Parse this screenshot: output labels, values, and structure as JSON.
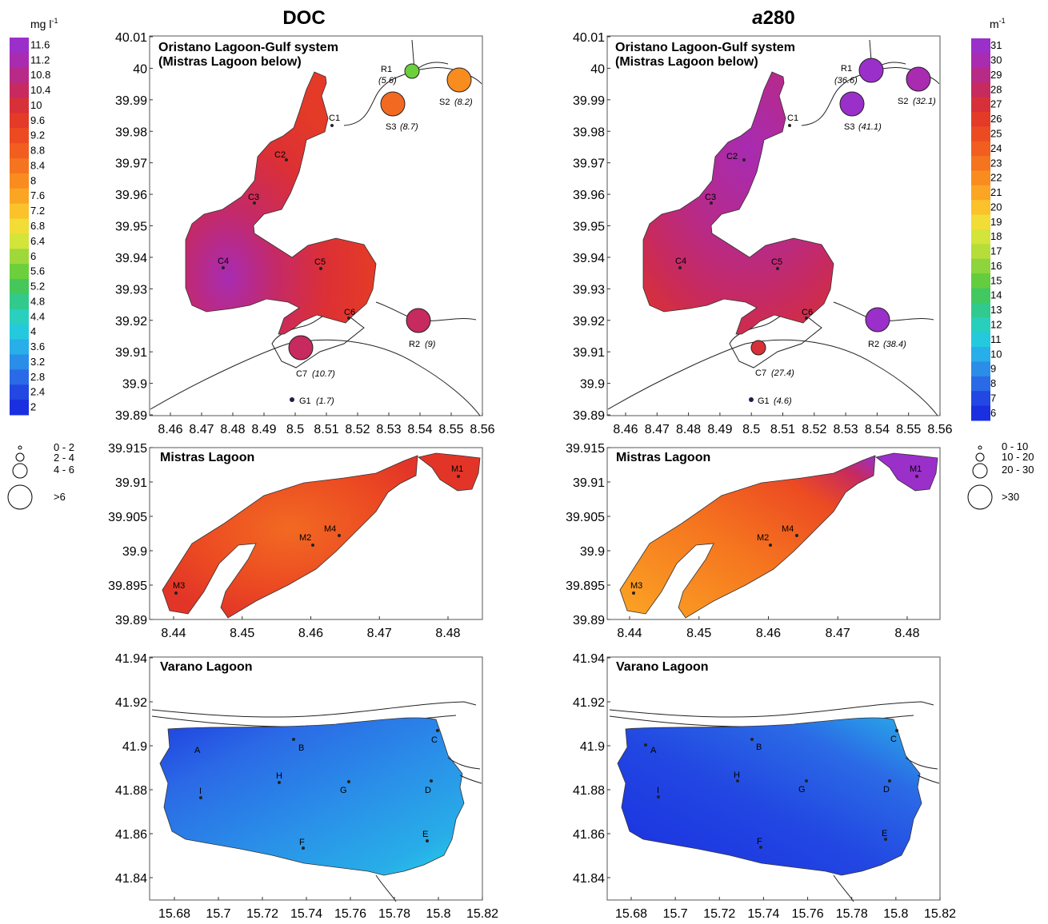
{
  "titles": {
    "doc": "DOC",
    "a280_italic": "a",
    "a280_rest": "280"
  },
  "units": {
    "doc": "mg l-1",
    "doc_base": "mg l",
    "doc_sup": "-1",
    "a280": "m-1",
    "a280_base": "m",
    "a280_sup": "-1"
  },
  "doc_scale": {
    "labels": [
      "11.6",
      "11.2",
      "10.8",
      "10.4",
      "10",
      "9.6",
      "9.2",
      "8.8",
      "8.4",
      "8",
      "7.6",
      "7.2",
      "6.8",
      "6.4",
      "6",
      "5.6",
      "5.2",
      "4.8",
      "4.4",
      "4",
      "3.6",
      "3.2",
      "2.8",
      "2.4",
      "2"
    ],
    "colors": [
      "#9b2fc9",
      "#a82bb0",
      "#b72a88",
      "#c72a5e",
      "#d83038",
      "#e43a28",
      "#ec4b22",
      "#f15e20",
      "#f5741f",
      "#f98c1f",
      "#fba524",
      "#fbc22c",
      "#f2dc36",
      "#d3e43a",
      "#9fd83b",
      "#6ccf3c",
      "#45c75a",
      "#32c98c",
      "#2ad0bd",
      "#25c9de",
      "#28aee8",
      "#2a8de8",
      "#2b6ae6",
      "#2247e2",
      "#1a2fe0"
    ]
  },
  "a280_scale": {
    "labels": [
      "31",
      "30",
      "29",
      "28",
      "27",
      "26",
      "25",
      "24",
      "23",
      "22",
      "21",
      "20",
      "19",
      "18",
      "17",
      "16",
      "15",
      "14",
      "13",
      "12",
      "11",
      "10",
      "9",
      "8",
      "7",
      "6"
    ],
    "colors": [
      "#9b2fc9",
      "#a82bb0",
      "#b72a88",
      "#c72a5e",
      "#d83038",
      "#e43a28",
      "#ec4b22",
      "#f15e20",
      "#f5741f",
      "#f98c1f",
      "#fba524",
      "#fbc22c",
      "#f2dc36",
      "#d3e43a",
      "#b5de3b",
      "#8ed43c",
      "#63cd3f",
      "#42c860",
      "#30ca8f",
      "#28cfbd",
      "#25c9de",
      "#28aee8",
      "#2a8de8",
      "#2b6ae6",
      "#2247e2",
      "#1a2fe0"
    ]
  },
  "doc_size_legend": [
    "0 - 2",
    "2 - 4",
    "4 - 6",
    ">6"
  ],
  "a280_size_legend": [
    "0 - 10",
    "10 - 20",
    "20 - 30",
    ">30"
  ],
  "oristano": {
    "title_line1": "Oristano Lagoon-Gulf system",
    "title_line2": "(Mistras Lagoon below)",
    "y_ticks": [
      "40.01",
      "40",
      "39.99",
      "39.98",
      "39.97",
      "39.96",
      "39.95",
      "39.94",
      "39.93",
      "39.92",
      "39.91",
      "39.9",
      "39.89"
    ],
    "x_ticks": [
      "8.46",
      "8.47",
      "8.48",
      "8.49",
      "8.5",
      "8.51",
      "8.52",
      "8.53",
      "8.54",
      "8.55",
      "8.56"
    ],
    "stations": [
      "C1",
      "C2",
      "C3",
      "C4",
      "C5",
      "C6"
    ],
    "doc_values": {
      "R1": "R1",
      "R1v": "(5.6)",
      "S2": "S2",
      "S2v": "(8.2)",
      "S3": "S3",
      "S3v": "(8.7)",
      "R2": "R2",
      "R2v": "(9)",
      "C7": "C7",
      "C7v": "(10.7)",
      "G1": "G1",
      "G1v": "(1.7)"
    },
    "a280_values": {
      "R1": "R1",
      "R1v": "(36.6)",
      "S2": "S2",
      "S2v": "(32.1)",
      "S3": "S3",
      "S3v": "(41.1)",
      "R2": "R2",
      "R2v": "(38.4)",
      "C7": "C7",
      "C7v": "(27.4)",
      "G1": "G1",
      "G1v": "(4.6)"
    }
  },
  "mistras": {
    "title": "Mistras Lagoon",
    "y_ticks": [
      "39.915",
      "39.91",
      "39.905",
      "39.9",
      "39.895",
      "39.89"
    ],
    "x_ticks": [
      "8.44",
      "8.45",
      "8.46",
      "8.47",
      "8.48"
    ],
    "stations": [
      "M1",
      "M2",
      "M3",
      "M4"
    ]
  },
  "varano": {
    "title": "Varano Lagoon",
    "y_ticks": [
      "41.94",
      "41.92",
      "41.9",
      "41.88",
      "41.86",
      "41.84"
    ],
    "x_ticks": [
      "15.68",
      "15.7",
      "15.72",
      "15.74",
      "15.76",
      "15.78",
      "15.8",
      "15.82"
    ],
    "stations": [
      "A",
      "B",
      "C",
      "D",
      "E",
      "F",
      "G",
      "H",
      "I"
    ]
  }
}
